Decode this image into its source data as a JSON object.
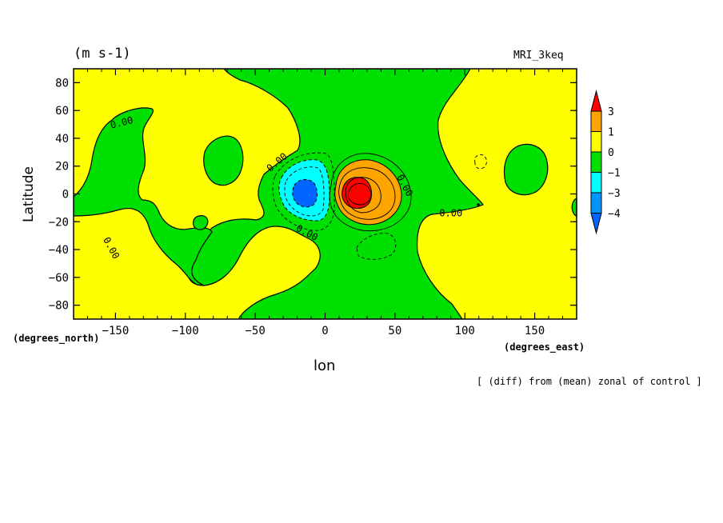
{
  "chart_data": {
    "type": "heatmap",
    "title": "(m s-1)",
    "model_label": "MRI_3keq",
    "xlabel": "lon",
    "ylabel": "Latitude",
    "x_units": "(degrees_east)",
    "y_units": "(degrees_north)",
    "caption": "[ (diff) from (mean) zonal of control ]",
    "xlim": [
      -180,
      180
    ],
    "ylim": [
      -90,
      90
    ],
    "x_ticks": [
      -150,
      -100,
      -50,
      0,
      50,
      100,
      150
    ],
    "y_ticks": [
      -80,
      -60,
      -40,
      -20,
      0,
      20,
      40,
      60,
      80
    ],
    "colorbar": {
      "tick_labels": [
        "3",
        "1",
        "0",
        "-1",
        "-3",
        "-4"
      ],
      "colors": [
        "#ff0000",
        "#ffa500",
        "#ffff00",
        "#00e000",
        "#00ffff",
        "#0096ff",
        "#0064ff"
      ]
    },
    "contour_labels": [
      "0.00",
      "0.00",
      "0.00",
      "0.00",
      "0.00",
      "0.00",
      "0.00"
    ],
    "features": [
      {
        "name": "positive maximum",
        "lon": 20,
        "lat": 2,
        "value": 3
      },
      {
        "name": "negative minimum",
        "lon": -15,
        "lat": 0,
        "value": -4
      }
    ]
  }
}
